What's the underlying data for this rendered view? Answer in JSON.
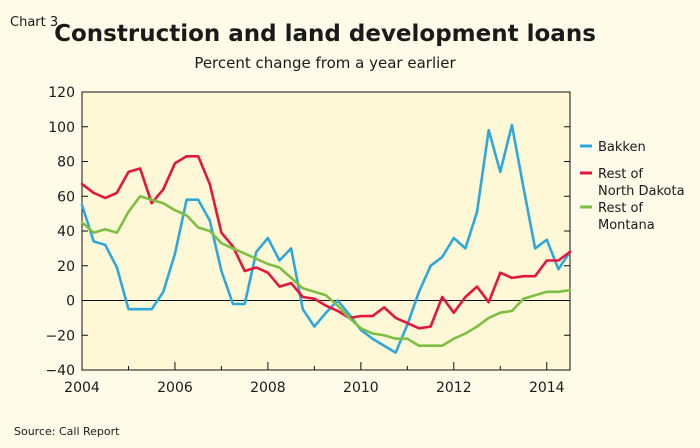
{
  "chart_number": "Chart 3",
  "source": "Source: Call Report",
  "colors": {
    "background": "#fffbe9",
    "plot_background": "#fff8d6",
    "Bakken": "#2ea8dc",
    "Rest of North Dakota": "#e3173d",
    "Rest of Montana": "#7dbf42"
  },
  "chart_data": {
    "type": "line",
    "title": "Construction and land development loans",
    "subtitle": "Percent change from a year earlier",
    "xlabel": "",
    "ylabel": "",
    "xlim": [
      2004,
      2014.5
    ],
    "ylim": [
      -40,
      120
    ],
    "x_ticks": [
      2004,
      2006,
      2008,
      2010,
      2012,
      2014
    ],
    "x_tick_labels": [
      "2004",
      "2006",
      "2008",
      "2010",
      "2012",
      "2014"
    ],
    "y_ticks": [
      -40,
      -20,
      0,
      20,
      40,
      60,
      80,
      100,
      120
    ],
    "y_tick_labels": [
      "−40",
      "−20",
      "0",
      "20",
      "40",
      "60",
      "80",
      "100",
      "120"
    ],
    "grid": false,
    "legend_position": "right",
    "x": [
      2004.0,
      2004.25,
      2004.5,
      2004.75,
      2005.0,
      2005.25,
      2005.5,
      2005.75,
      2006.0,
      2006.25,
      2006.5,
      2006.75,
      2007.0,
      2007.25,
      2007.5,
      2007.75,
      2008.0,
      2008.25,
      2008.5,
      2008.75,
      2009.0,
      2009.25,
      2009.5,
      2009.75,
      2010.0,
      2010.25,
      2010.5,
      2010.75,
      2011.0,
      2011.25,
      2011.5,
      2011.75,
      2012.0,
      2012.25,
      2012.5,
      2012.75,
      2013.0,
      2013.25,
      2013.5,
      2013.75,
      2014.0,
      2014.25,
      2014.5
    ],
    "series": [
      {
        "name": "Bakken",
        "legend_lines": [
          "Bakken"
        ],
        "color": "#2ea8dc",
        "values": [
          55,
          34,
          32,
          19,
          -5,
          -5,
          -5,
          5,
          27,
          58,
          58,
          46,
          17,
          -2,
          -2,
          28,
          36,
          23,
          30,
          -5,
          -15,
          -7,
          0,
          -8,
          -17,
          -22,
          -26,
          -30,
          -14,
          5,
          20,
          25,
          36,
          30,
          51,
          98,
          74,
          101,
          65,
          30,
          35,
          18,
          28
        ]
      },
      {
        "name": "Rest of North Dakota",
        "legend_lines": [
          "Rest of",
          "North Dakota"
        ],
        "color": "#e3173d",
        "values": [
          67,
          62,
          59,
          62,
          74,
          76,
          56,
          64,
          79,
          83,
          83,
          67,
          39,
          31,
          17,
          19,
          16,
          8,
          10,
          2,
          1,
          -3,
          -6,
          -10,
          -9,
          -9,
          -4,
          -10,
          -13,
          -16,
          -15,
          2,
          -7,
          2,
          8,
          -1,
          16,
          13,
          14,
          14,
          23,
          23,
          28
        ]
      },
      {
        "name": "Rest of Montana",
        "legend_lines": [
          "Rest of",
          "Montana"
        ],
        "color": "#7dbf42",
        "values": [
          45,
          39,
          41,
          39,
          51,
          60,
          58,
          56,
          52,
          49,
          42,
          40,
          33,
          30,
          27,
          24,
          21,
          19,
          13,
          7,
          5,
          3,
          -3,
          -10,
          -16,
          -19,
          -20,
          -22,
          -22,
          -26,
          -26,
          -26,
          -22,
          -19,
          -15,
          -10,
          -7,
          -6,
          1,
          3,
          5,
          5,
          6
        ]
      }
    ]
  }
}
